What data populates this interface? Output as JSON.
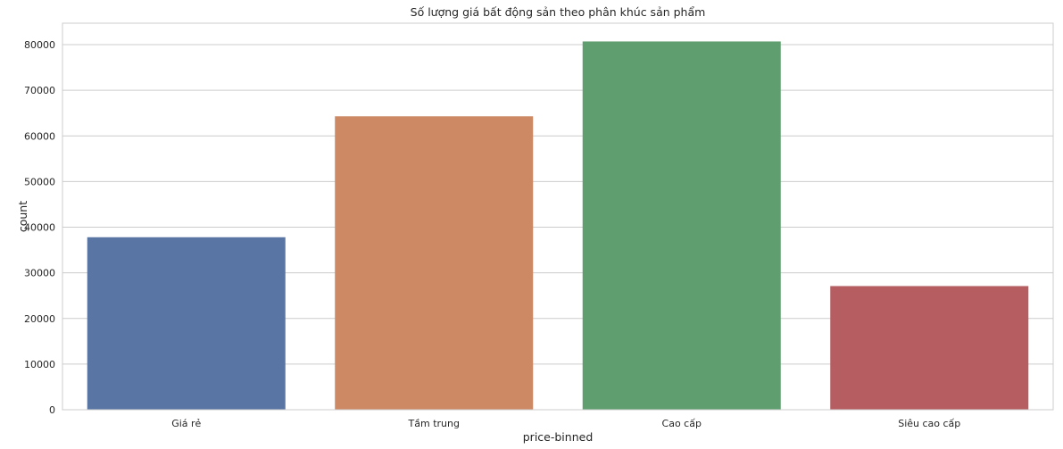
{
  "chart_data": {
    "type": "bar",
    "title": "Số lượng giá bất động sản theo phân khúc sản phẩm",
    "xlabel": "price-binned",
    "ylabel": "count",
    "categories": [
      "Giá rẻ",
      "Tầm trung",
      "Cao cấp",
      "Siêu cao cấp"
    ],
    "values": [
      37800,
      64300,
      80700,
      27100
    ],
    "colors": [
      "#5975a4",
      "#cc8963",
      "#5f9e6e",
      "#b55d60"
    ],
    "ylim": [
      0,
      84700
    ],
    "yticks": [
      0,
      10000,
      20000,
      30000,
      40000,
      50000,
      60000,
      70000,
      80000
    ],
    "grid": "horizontal",
    "background": "#ffffff",
    "gridColor": "#cccccc"
  }
}
